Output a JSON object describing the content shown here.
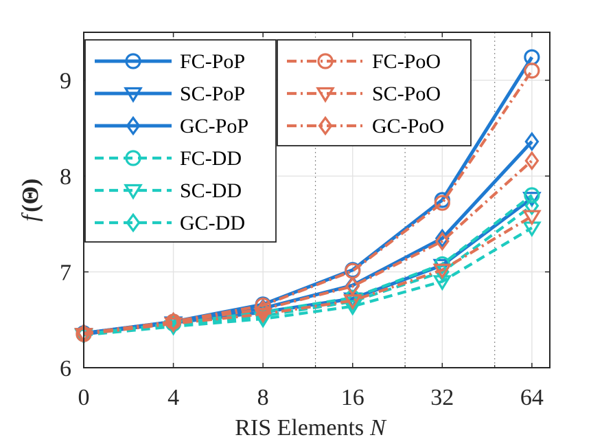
{
  "chart_data": {
    "type": "line",
    "title": "",
    "xlabel": "RIS Elements",
    "xlabel_var": "N",
    "ylabel_func": "f",
    "ylabel_arg": "(Θ)",
    "x_tick_labels": [
      "0",
      "4",
      "8",
      "16",
      "32",
      "64"
    ],
    "x_positions": [
      0,
      1,
      2,
      3,
      4,
      5
    ],
    "x_minor_ticks": [
      2.585,
      3.585,
      4.585
    ],
    "x_range": [
      0,
      5.2
    ],
    "y_ticks": [
      6,
      7,
      8,
      9
    ],
    "y_tick_labels": [
      "6",
      "7",
      "8",
      "9"
    ],
    "ylim": [
      6,
      9.5
    ],
    "grid": true,
    "legend_placement": "top-left",
    "series": [
      {
        "name": "FC-PoP",
        "color": "#1f7ad1",
        "linestyle": "solid",
        "marker": "circle",
        "values": [
          6.36,
          6.48,
          6.66,
          7.02,
          7.75,
          9.24
        ]
      },
      {
        "name": "SC-PoP",
        "color": "#1f7ad1",
        "linestyle": "solid",
        "marker": "triangle-down",
        "values": [
          6.35,
          6.47,
          6.58,
          6.72,
          7.07,
          7.77
        ]
      },
      {
        "name": "GC-PoP",
        "color": "#1f7ad1",
        "linestyle": "solid",
        "marker": "diamond",
        "values": [
          6.36,
          6.48,
          6.62,
          6.86,
          7.35,
          8.36
        ]
      },
      {
        "name": "FC-DD",
        "color": "#1ecbc0",
        "linestyle": "dashed",
        "marker": "circle",
        "values": [
          6.35,
          6.46,
          6.58,
          6.73,
          7.08,
          7.8
        ]
      },
      {
        "name": "SC-DD",
        "color": "#1ecbc0",
        "linestyle": "dashed",
        "marker": "triangle-down",
        "values": [
          6.34,
          6.43,
          6.51,
          6.64,
          6.9,
          7.46
        ]
      },
      {
        "name": "GC-DD",
        "color": "#1ecbc0",
        "linestyle": "dashed",
        "marker": "diamond",
        "values": [
          6.35,
          6.45,
          6.54,
          6.69,
          7.0,
          7.69
        ]
      },
      {
        "name": "FC-PoO",
        "color": "#e07256",
        "linestyle": "dashdot",
        "marker": "circle",
        "values": [
          6.35,
          6.48,
          6.65,
          7.01,
          7.72,
          9.1
        ]
      },
      {
        "name": "SC-PoO",
        "color": "#e07256",
        "linestyle": "dashdot",
        "marker": "triangle-down",
        "values": [
          6.35,
          6.46,
          6.56,
          6.7,
          7.02,
          7.58
        ]
      },
      {
        "name": "GC-PoO",
        "color": "#e07256",
        "linestyle": "dashdot",
        "marker": "diamond",
        "values": [
          6.36,
          6.48,
          6.61,
          6.85,
          7.32,
          8.16
        ]
      }
    ]
  }
}
